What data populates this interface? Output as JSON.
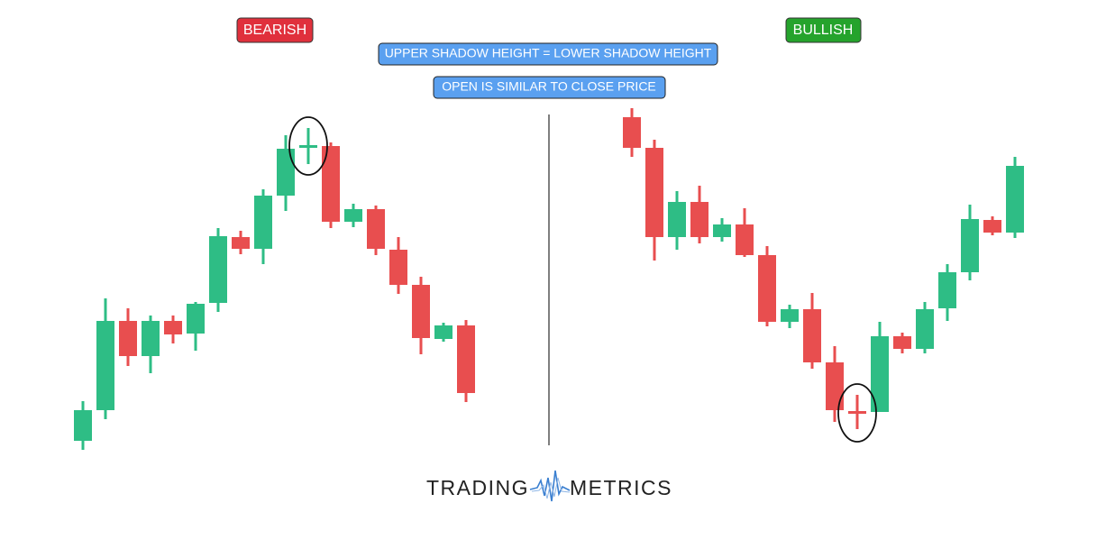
{
  "labels": {
    "bearish": "BEARISH",
    "bullish": "BULLISH"
  },
  "notes": [
    "UPPER SHADOW HEIGHT = LOWER SHADOW HEIGHT",
    "OPEN IS SIMILAR TO CLOSE PRICE"
  ],
  "logo": {
    "left": "TRADING",
    "right": "METRICS"
  }
}
